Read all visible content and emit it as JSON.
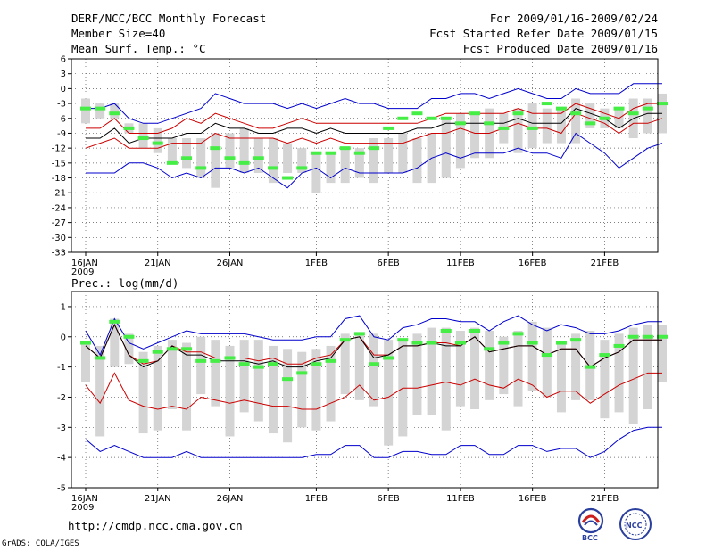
{
  "header": {
    "left": [
      "DERF/NCC/BCC Monthly Forecast",
      "Member Size=40",
      "Mean Surf. Temp.: °C"
    ],
    "right": [
      "For 2009/01/16-2009/02/24",
      "Fcst Started Refer Date 2009/01/15",
      "Fcst Produced Date 2009/01/16"
    ]
  },
  "footer": {
    "url": "http://cmdp.ncc.cma.gov.cn",
    "credit": "GrADS: COLA/IGES",
    "logo_bcc": "BCC",
    "logo_ncc": "NCC"
  },
  "colors": {
    "max_min": "#0000cc",
    "quartile": "#cc0000",
    "mean": "#000000",
    "median": "#44ee44",
    "box": "#d4d4d4"
  },
  "chart_data": [
    {
      "type": "box-whisker",
      "title": "Mean Surf. Temp.: °C",
      "ylim": [
        -33,
        6
      ],
      "yticks": [
        6,
        3,
        0,
        -3,
        -6,
        -9,
        -12,
        -15,
        -18,
        -21,
        -24,
        -27,
        -30,
        -33
      ],
      "x_start_day": 16,
      "xticks": [
        {
          "day": 0,
          "label": "16JAN",
          "sub": "2009"
        },
        {
          "day": 5,
          "label": "21JAN"
        },
        {
          "day": 10,
          "label": "26JAN"
        },
        {
          "day": 16,
          "label": "1FEB"
        },
        {
          "day": 21,
          "label": "6FEB"
        },
        {
          "day": 26,
          "label": "11FEB"
        },
        {
          "day": 31,
          "label": "16FEB"
        },
        {
          "day": 36,
          "label": "21FEB"
        }
      ],
      "box_low": [
        -7,
        -6,
        -6,
        -9,
        -12,
        -13,
        -15,
        -16,
        -18,
        -20,
        -16,
        -17,
        -17,
        -19,
        -17,
        -17,
        -21,
        -19,
        -19,
        -18,
        -19,
        -17,
        -17,
        -19,
        -19,
        -18,
        -16,
        -14,
        -14,
        -11,
        -13,
        -12,
        -11,
        -11,
        -11,
        -8,
        -8,
        -8,
        -10,
        -9,
        -9
      ],
      "box_high": [
        -2,
        -3,
        -3,
        -7,
        -7,
        -8,
        -10,
        -10,
        -10,
        -9,
        -9,
        -8,
        -10,
        -10,
        -11,
        -12,
        -13,
        -13,
        -12,
        -12,
        -10,
        -10,
        -9,
        -10,
        -9,
        -6,
        -5,
        -5,
        -4,
        -5,
        -4,
        -3,
        -4,
        -4,
        -2,
        -3,
        -4,
        -4,
        -2,
        -2,
        -1
      ],
      "median": [
        -4,
        -4,
        -5,
        -8,
        -10,
        -11,
        -15,
        -14,
        -16,
        -12,
        -14,
        -15,
        -14,
        -16,
        -18,
        -16,
        -13,
        -13,
        -12,
        -13,
        -12,
        -8,
        -6,
        -5,
        -6,
        -6,
        -7,
        -5,
        -7,
        -8,
        -5,
        -8,
        -3,
        -4,
        -5,
        -7,
        -6,
        -4,
        -5,
        -4,
        -3
      ],
      "max": [
        -4,
        -4,
        -3,
        -6,
        -7,
        -7,
        -6,
        -5,
        -4,
        -1,
        -2,
        -3,
        -3,
        -3,
        -4,
        -3,
        -4,
        -3,
        -2,
        -3,
        -3,
        -4,
        -4,
        -4,
        -2,
        -2,
        -1,
        -1,
        -2,
        -1,
        0,
        -1,
        -2,
        -2,
        0,
        -1,
        -1,
        -1,
        1,
        1,
        1
      ],
      "q_high": [
        -8,
        -8,
        -6,
        -9,
        -9,
        -9,
        -8,
        -6,
        -7,
        -5,
        -6,
        -7,
        -8,
        -8,
        -7,
        -6,
        -7,
        -7,
        -7,
        -7,
        -7,
        -7,
        -7,
        -7,
        -6,
        -5,
        -5,
        -5,
        -5,
        -5,
        -4,
        -5,
        -5,
        -5,
        -3,
        -4,
        -5,
        -6,
        -4,
        -3,
        -3
      ],
      "mean": [
        -10,
        -10,
        -8,
        -11,
        -10,
        -10,
        -10,
        -9,
        -9,
        -7,
        -8,
        -8,
        -9,
        -9,
        -8,
        -8,
        -9,
        -8,
        -9,
        -9,
        -9,
        -9,
        -9,
        -8,
        -8,
        -7,
        -7,
        -7,
        -7,
        -7,
        -6,
        -7,
        -7,
        -7,
        -4,
        -5,
        -6,
        -8,
        -6,
        -5,
        -5
      ],
      "q_low": [
        -12,
        -11,
        -10,
        -12,
        -12,
        -12,
        -11,
        -11,
        -11,
        -9,
        -10,
        -10,
        -10,
        -10,
        -11,
        -10,
        -11,
        -10,
        -11,
        -11,
        -11,
        -11,
        -11,
        -10,
        -9,
        -9,
        -8,
        -9,
        -9,
        -8,
        -7,
        -8,
        -8,
        -9,
        -5,
        -6,
        -7,
        -9,
        -7,
        -7,
        -6
      ],
      "min": [
        -17,
        -17,
        -17,
        -15,
        -15,
        -16,
        -18,
        -17,
        -18,
        -16,
        -16,
        -17,
        -16,
        -18,
        -20,
        -17,
        -16,
        -18,
        -16,
        -17,
        -17,
        -17,
        -17,
        -16,
        -14,
        -13,
        -14,
        -13,
        -13,
        -13,
        -12,
        -13,
        -13,
        -14,
        -9,
        -11,
        -13,
        -16,
        -14,
        -12,
        -11
      ]
    },
    {
      "type": "box-whisker",
      "title": "Prec.: log(mm/d)",
      "ylim": [
        -5,
        1.5
      ],
      "yticks": [
        1,
        0,
        -1,
        -2,
        -3,
        -4,
        -5
      ],
      "x_start_day": 16,
      "xticks": [
        {
          "day": 0,
          "label": "16JAN",
          "sub": "2009"
        },
        {
          "day": 5,
          "label": "21JAN"
        },
        {
          "day": 10,
          "label": "26JAN"
        },
        {
          "day": 16,
          "label": "1FEB"
        },
        {
          "day": 21,
          "label": "6FEB"
        },
        {
          "day": 26,
          "label": "11FEB"
        },
        {
          "day": 31,
          "label": "16FEB"
        },
        {
          "day": 36,
          "label": "21FEB"
        }
      ],
      "box_low": [
        -1.5,
        -3.3,
        -1.0,
        -0.9,
        -3.2,
        -3.1,
        -2.4,
        -3.1,
        -1.9,
        -2.3,
        -3.3,
        -2.5,
        -2.8,
        -3.2,
        -3.5,
        -3.0,
        -3.1,
        -2.8,
        -1.9,
        -2.1,
        -2.3,
        -3.6,
        -3.3,
        -2.6,
        -2.6,
        -3.1,
        -2.3,
        -2.4,
        -2.1,
        -1.9,
        -2.3,
        -1.8,
        -2.0,
        -2.5,
        -2.1,
        -2.1,
        -2.7,
        -2.5,
        -2.9,
        -2.4,
        -1.5
      ],
      "box_high": [
        -0.2,
        -0.3,
        0.6,
        0.1,
        -0.5,
        -0.3,
        -0.1,
        -0.2,
        0.0,
        -0.1,
        -0.3,
        -0.1,
        -0.1,
        -0.3,
        -0.4,
        -0.5,
        -0.4,
        -0.3,
        0.1,
        0.1,
        0.1,
        -0.1,
        -0.1,
        0.1,
        0.3,
        0.3,
        0.2,
        0.3,
        0.2,
        0.0,
        0.2,
        0.5,
        0.3,
        -0.2,
        0.1,
        0.2,
        -0.1,
        0.1,
        0.3,
        0.4,
        0.4
      ],
      "median": [
        -0.2,
        -0.7,
        0.5,
        0.0,
        -0.8,
        -0.5,
        -0.4,
        -0.4,
        -0.8,
        -0.8,
        -0.7,
        -0.9,
        -1.0,
        -0.9,
        -1.4,
        -1.2,
        -0.9,
        -0.8,
        -0.1,
        0.1,
        -0.9,
        -0.7,
        -0.1,
        -0.2,
        -0.2,
        0.2,
        -0.2,
        0.2,
        -0.4,
        -0.2,
        0.1,
        -0.2,
        -0.6,
        -0.2,
        -0.1,
        -1.0,
        -0.6,
        -0.3,
        0.0,
        0.0,
        0.0
      ],
      "max": [
        0.2,
        -0.6,
        0.6,
        -0.2,
        -0.4,
        -0.2,
        0.0,
        0.2,
        0.1,
        0.1,
        0.1,
        0.1,
        0.0,
        -0.1,
        -0.1,
        -0.1,
        0.0,
        0.0,
        0.6,
        0.7,
        0.0,
        -0.1,
        0.3,
        0.4,
        0.6,
        0.6,
        0.5,
        0.5,
        0.2,
        0.5,
        0.7,
        0.4,
        0.2,
        0.4,
        0.3,
        0.1,
        0.1,
        0.2,
        0.4,
        0.5,
        0.5
      ],
      "q_high": [
        -0.3,
        -0.7,
        0.4,
        -0.6,
        -0.9,
        -0.8,
        -0.3,
        -0.5,
        -0.5,
        -0.7,
        -0.7,
        -0.7,
        -0.8,
        -0.7,
        -0.9,
        -0.9,
        -0.7,
        -0.6,
        -0.1,
        0.0,
        -0.6,
        -0.6,
        -0.3,
        -0.3,
        -0.2,
        -0.2,
        -0.3,
        0.0,
        -0.5,
        -0.4,
        -0.3,
        -0.3,
        -0.6,
        -0.4,
        -0.4,
        -1.0,
        -0.7,
        -0.5,
        -0.1,
        -0.1,
        -0.1
      ],
      "mean": [
        -0.3,
        -0.7,
        0.4,
        -0.6,
        -1.0,
        -0.8,
        -0.3,
        -0.6,
        -0.6,
        -0.8,
        -0.8,
        -0.8,
        -0.9,
        -0.8,
        -1.0,
        -1.0,
        -0.8,
        -0.7,
        -0.1,
        0.0,
        -0.7,
        -0.6,
        -0.3,
        -0.3,
        -0.2,
        -0.3,
        -0.3,
        0.0,
        -0.5,
        -0.4,
        -0.3,
        -0.3,
        -0.6,
        -0.4,
        -0.4,
        -1.0,
        -0.7,
        -0.5,
        -0.1,
        -0.1,
        -0.1
      ],
      "q_low": [
        -1.6,
        -2.2,
        -1.2,
        -2.1,
        -2.3,
        -2.4,
        -2.3,
        -2.4,
        -2.0,
        -2.1,
        -2.2,
        -2.1,
        -2.2,
        -2.3,
        -2.3,
        -2.4,
        -2.4,
        -2.2,
        -2.0,
        -1.6,
        -2.1,
        -2.0,
        -1.7,
        -1.7,
        -1.6,
        -1.5,
        -1.6,
        -1.4,
        -1.6,
        -1.7,
        -1.4,
        -1.6,
        -2.0,
        -1.8,
        -1.8,
        -2.2,
        -1.9,
        -1.6,
        -1.4,
        -1.2,
        -1.2
      ],
      "min": [
        -3.4,
        -3.8,
        -3.6,
        -3.8,
        -4.0,
        -4.0,
        -4.0,
        -3.8,
        -4.0,
        -4.0,
        -4.0,
        -4.0,
        -4.0,
        -4.0,
        -4.0,
        -4.0,
        -3.9,
        -3.9,
        -3.6,
        -3.6,
        -4.0,
        -4.0,
        -3.8,
        -3.8,
        -3.9,
        -3.9,
        -3.6,
        -3.6,
        -3.9,
        -3.9,
        -3.6,
        -3.6,
        -3.8,
        -3.7,
        -3.7,
        -4.0,
        -3.8,
        -3.4,
        -3.1,
        -3.0,
        -3.0
      ]
    }
  ]
}
